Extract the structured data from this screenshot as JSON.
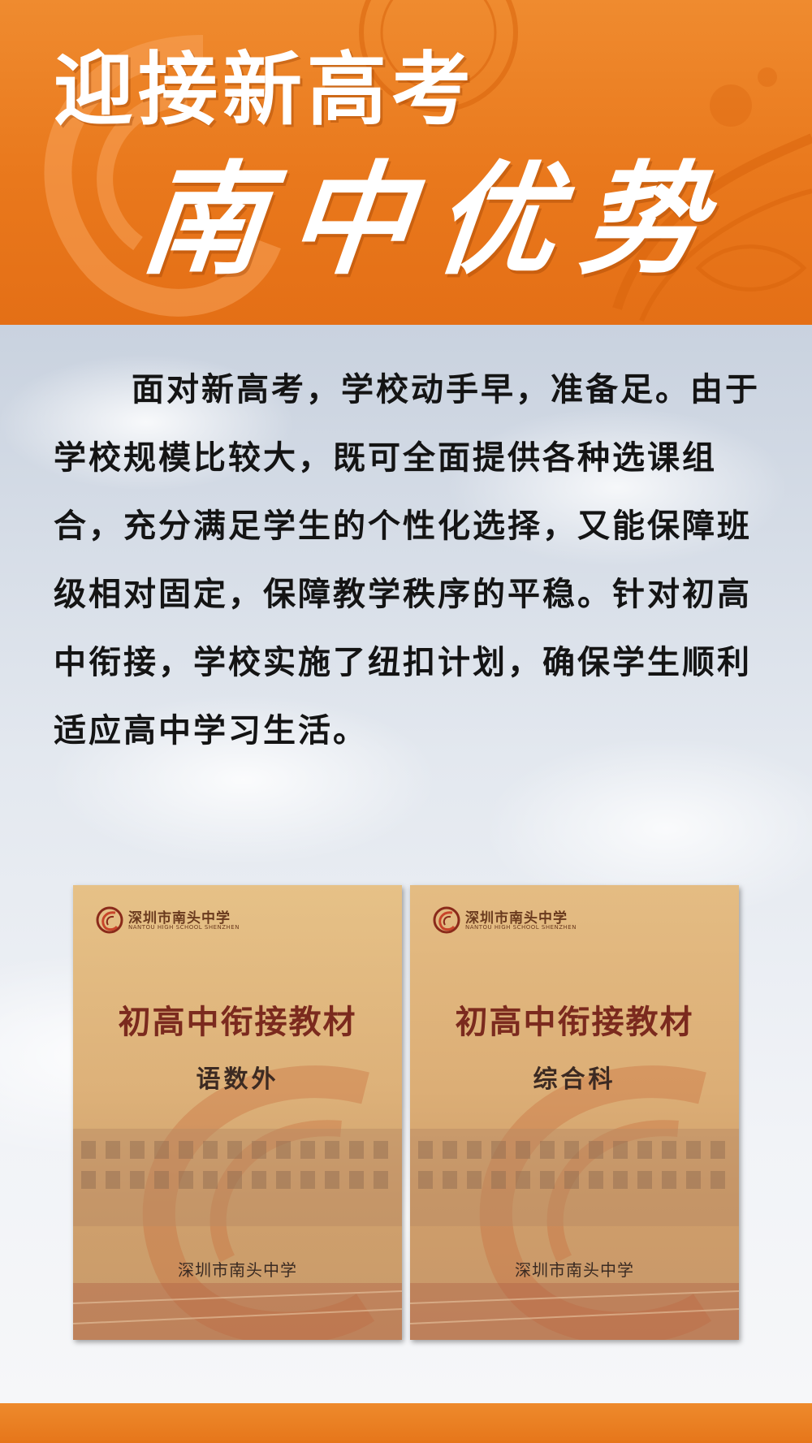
{
  "header": {
    "title_line1": "迎接新高考",
    "title_line2": "南中优势"
  },
  "body": {
    "paragraph": "面对新高考，学校动手早，准备足。由于学校规模比较大，既可全面提供各种选课组合，充分满足学生的个性化选择，又能保障班级相对固定，保障教学秩序的平稳。针对初高中衔接，学校实施了纽扣计划，确保学生顺利适应高中学习生活。"
  },
  "books": [
    {
      "school_name": "深圳市南头中学",
      "school_name_en": "NANTOU HIGH SCHOOL SHENZHEN",
      "title": "初高中衔接教材",
      "subtitle": "语数外",
      "footer": "深圳市南头中学"
    },
    {
      "school_name": "深圳市南头中学",
      "school_name_en": "NANTOU HIGH SCHOOL SHENZHEN",
      "title": "初高中衔接教材",
      "subtitle": "综合科",
      "footer": "深圳市南头中学"
    }
  ],
  "colors": {
    "header_orange": "#e9781c",
    "title_white": "#ffffff",
    "body_text": "#141414",
    "book_title": "#7b2a1e"
  },
  "icons": {
    "school_logo": "school-logo-icon"
  }
}
